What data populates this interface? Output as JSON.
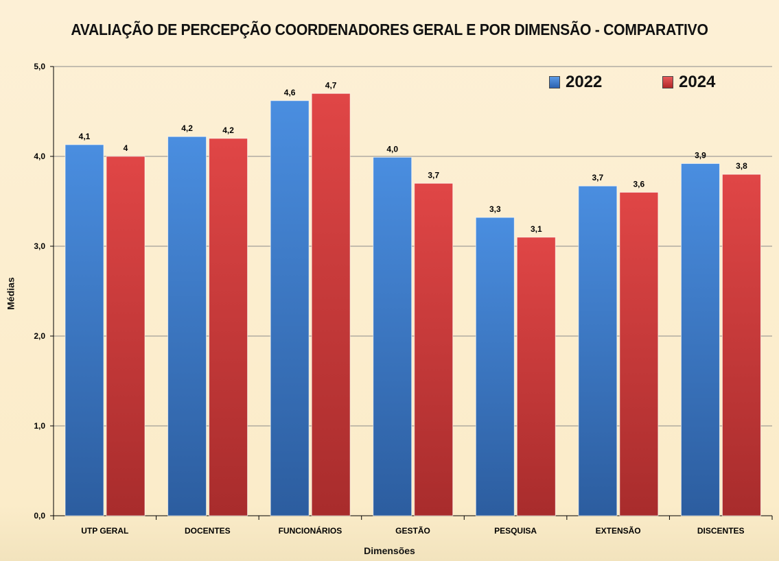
{
  "chart_data": {
    "type": "bar",
    "title": "AVALIAÇÃO DE PERCEPÇÃO COORDENADORES GERAL E POR DIMENSÃO - COMPARATIVO",
    "xlabel": "Dimensões",
    "ylabel": "Médias",
    "ylim": [
      0,
      5
    ],
    "yticks": [
      "0,0",
      "1,0",
      "2,0",
      "3,0",
      "4,0",
      "5,0"
    ],
    "grid": true,
    "legend_position": "top-right",
    "categories": [
      "UTP GERAL",
      "DOCENTES",
      "FUNCIONÁRIOS",
      "GESTÃO",
      "PESQUISA",
      "EXTENSÃO",
      "DISCENTES"
    ],
    "series": [
      {
        "name": "2022",
        "color": "#3d7fd0",
        "values": [
          4.13,
          4.22,
          4.62,
          3.99,
          3.32,
          3.67,
          3.92
        ],
        "labels": [
          "4,1",
          "4,2",
          "4,6",
          "4,0",
          "3,3",
          "3,7",
          "3,9"
        ]
      },
      {
        "name": "2024",
        "color": "#d63c3c",
        "values": [
          4.0,
          4.2,
          4.7,
          3.7,
          3.1,
          3.6,
          3.8
        ],
        "labels": [
          "4",
          "4,2",
          "4,7",
          "3,7",
          "3,1",
          "3,6",
          "3,8"
        ]
      }
    ]
  }
}
